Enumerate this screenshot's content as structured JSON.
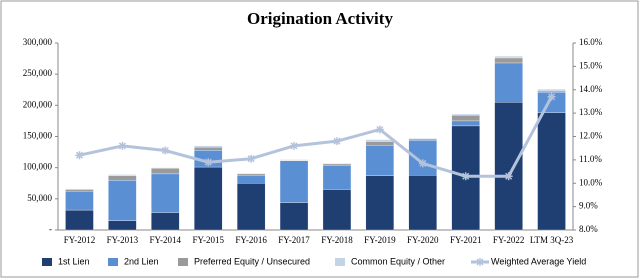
{
  "chart_data": {
    "type": "bar",
    "stacked": true,
    "title": "Origination Activity",
    "categories": [
      "FY-2012",
      "FY-2013",
      "FY-2014",
      "FY-2015",
      "FY-2016",
      "FY-2017",
      "FY-2018",
      "FY-2019",
      "FY-2020",
      "FY-2021",
      "FY-2022",
      "LTM 3Q-23"
    ],
    "series": [
      {
        "name": "1st Lien",
        "color": "#1f3f73",
        "values": [
          32000,
          15000,
          28000,
          101000,
          75000,
          44000,
          65000,
          87000,
          88000,
          167000,
          205000,
          188000
        ]
      },
      {
        "name": "2nd Lien",
        "color": "#5b8fd4",
        "values": [
          30000,
          65000,
          62000,
          27000,
          13000,
          67000,
          39000,
          49000,
          56000,
          8000,
          63000,
          33000
        ]
      },
      {
        "name": "Preferred Equity / Unsecured",
        "color": "#9a9a9a",
        "values": [
          3000,
          7000,
          9000,
          5000,
          2000,
          1000,
          2000,
          6000,
          2000,
          9000,
          8000,
          2000
        ]
      },
      {
        "name": "Common Equity / Other",
        "color": "#c5d3e8",
        "values": [
          1000,
          2000,
          1000,
          2000,
          1000,
          1000,
          1000,
          3000,
          1000,
          2000,
          3000,
          3000
        ]
      },
      {
        "name": "Weighted Average Yield",
        "type": "line",
        "axis": "y2",
        "color": "#b4c3dc",
        "values": [
          11.2,
          11.6,
          11.4,
          10.9,
          11.05,
          11.6,
          11.8,
          12.3,
          10.85,
          10.3,
          10.3,
          13.7
        ]
      }
    ],
    "ylim": [
      0,
      300000
    ],
    "yticks": [
      {
        "value": 0,
        "label": "-"
      },
      {
        "value": 50000,
        "label": "50,000"
      },
      {
        "value": 100000,
        "label": "100,000"
      },
      {
        "value": 150000,
        "label": "150,000"
      },
      {
        "value": 200000,
        "label": "200,000"
      },
      {
        "value": 250000,
        "label": "250,000"
      },
      {
        "value": 300000,
        "label": "300,000"
      }
    ],
    "y2lim": [
      8,
      16
    ],
    "y2ticks": [
      {
        "value": 8,
        "label": "8.0%"
      },
      {
        "value": 9,
        "label": "9.0%"
      },
      {
        "value": 10,
        "label": "10.0%"
      },
      {
        "value": 11,
        "label": "11.0%"
      },
      {
        "value": 12,
        "label": "12.0%"
      },
      {
        "value": 13,
        "label": "13.0%"
      },
      {
        "value": 14,
        "label": "14.0%"
      },
      {
        "value": 15,
        "label": "15.0%"
      },
      {
        "value": 16,
        "label": "16.0%"
      }
    ],
    "legend": "bottom"
  }
}
